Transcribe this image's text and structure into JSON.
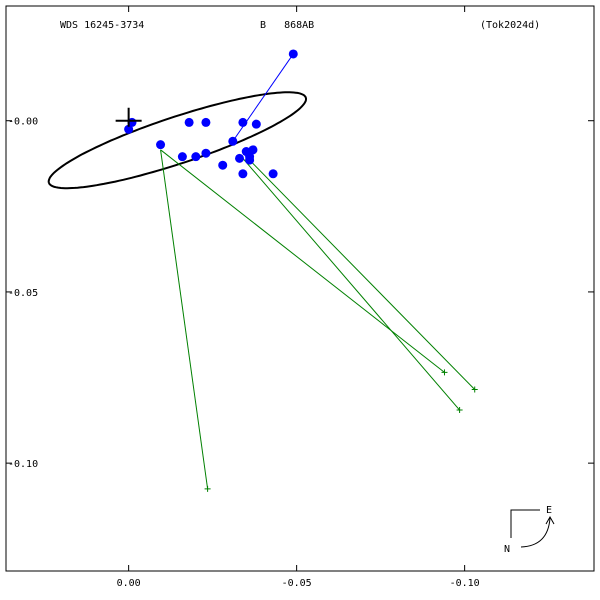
{
  "header": {
    "wds_id": "WDS 16245-3734",
    "designation": "B   868AB",
    "reference": "(Tok2024d)"
  },
  "compass": {
    "east_label": "E",
    "north_label": "N"
  },
  "chart_data": {
    "type": "scatter",
    "title": "",
    "xlabel": "",
    "ylabel": "",
    "x_axis_reversed": true,
    "xlim": [
      -0.1385,
      0.0365
    ],
    "ylim": [
      -0.1315,
      0.0335
    ],
    "x_ticks": [
      -0.1,
      -0.05,
      0.0
    ],
    "x_tick_labels": [
      "-0.10",
      "-0.05",
      "0.00"
    ],
    "y_ticks": [
      0.0,
      -0.05,
      -0.1
    ],
    "y_tick_labels": "-0.00,-0.05,-0.10",
    "orbit": {
      "center": [
        -0.0145,
        -0.0057
      ],
      "semi_major": 0.0402,
      "semi_minor": 0.0068,
      "rotation_deg": -18,
      "color": "#000000"
    },
    "primary_star": [
      0.0,
      0.0
    ],
    "micrometric_observations": {
      "color": "#0000ff",
      "points": [
        [
          -0.049,
          0.0195
        ],
        [
          -0.034,
          -0.0005
        ],
        [
          -0.038,
          -0.001
        ],
        [
          -0.023,
          -0.0005
        ],
        [
          -0.018,
          -0.0005
        ],
        [
          -0.001,
          -0.0005
        ],
        [
          0.0,
          -0.0025
        ],
        [
          -0.031,
          -0.006
        ],
        [
          -0.037,
          -0.0085
        ],
        [
          -0.035,
          -0.009
        ],
        [
          -0.036,
          -0.0105
        ],
        [
          -0.033,
          -0.011
        ],
        [
          -0.036,
          -0.0115
        ],
        [
          -0.023,
          -0.0095
        ],
        [
          -0.02,
          -0.0105
        ],
        [
          -0.016,
          -0.0105
        ],
        [
          -0.0095,
          -0.007
        ],
        [
          -0.028,
          -0.013
        ],
        [
          -0.034,
          -0.0155
        ],
        [
          -0.043,
          -0.0155
        ]
      ]
    },
    "residual_lines": [
      {
        "obs": [
          -0.049,
          0.0195
        ],
        "calc": [
          -0.031,
          -0.006
        ],
        "color": "#0000ff"
      }
    ],
    "speckle_observations": {
      "color": "#008000",
      "points": [
        [
          -0.103,
          -0.0785
        ],
        [
          -0.094,
          -0.0735
        ],
        [
          -0.0985,
          -0.0845
        ],
        [
          -0.0235,
          -0.1075
        ]
      ],
      "calc": [
        [
          -0.036,
          -0.0115
        ],
        [
          -0.0095,
          -0.0085
        ],
        [
          -0.034,
          -0.011
        ],
        [
          -0.0095,
          -0.0085
        ]
      ]
    }
  }
}
